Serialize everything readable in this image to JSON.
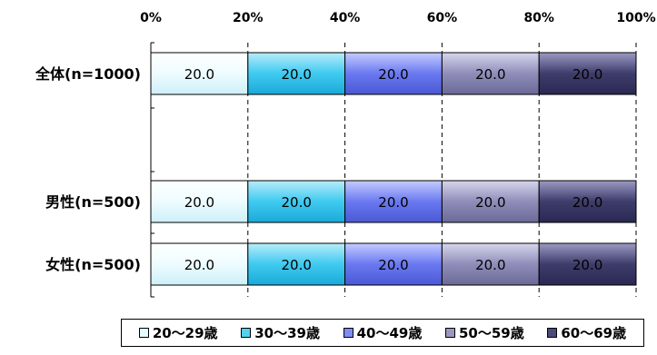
{
  "chart_data": {
    "type": "bar",
    "orientation": "horizontal",
    "stacked": true,
    "categories": [
      "全体(n=1000)",
      "男性(n=500)",
      "女性(n=500)"
    ],
    "x_ticks": [
      "0%",
      "20%",
      "40%",
      "60%",
      "80%",
      "100%"
    ],
    "xlim": [
      0,
      100
    ],
    "grid": "dashed vertical",
    "legend_position": "bottom",
    "series": [
      {
        "name": "20〜29歳",
        "values": [
          20.0,
          20.0,
          20.0
        ],
        "labels": [
          "20.0",
          "20.0",
          "20.0"
        ],
        "color": "#e6fbff"
      },
      {
        "name": "30〜39歳",
        "values": [
          20.0,
          20.0,
          20.0
        ],
        "labels": [
          "20.0",
          "20.0",
          "20.0"
        ],
        "color": "#53d1f0"
      },
      {
        "name": "40〜49歳",
        "values": [
          20.0,
          20.0,
          20.0
        ],
        "labels": [
          "20.0",
          "20.0",
          "20.0"
        ],
        "color": "#7f8cf5"
      },
      {
        "name": "50〜59歳",
        "values": [
          20.0,
          20.0,
          20.0
        ],
        "labels": [
          "20.0",
          "20.0",
          "20.0"
        ],
        "color": "#9a98c2"
      },
      {
        "name": "60〜69歳",
        "values": [
          20.0,
          20.0,
          20.0
        ],
        "labels": [
          "20.0",
          "20.0",
          "20.0"
        ],
        "color": "#4c4a78"
      }
    ]
  }
}
